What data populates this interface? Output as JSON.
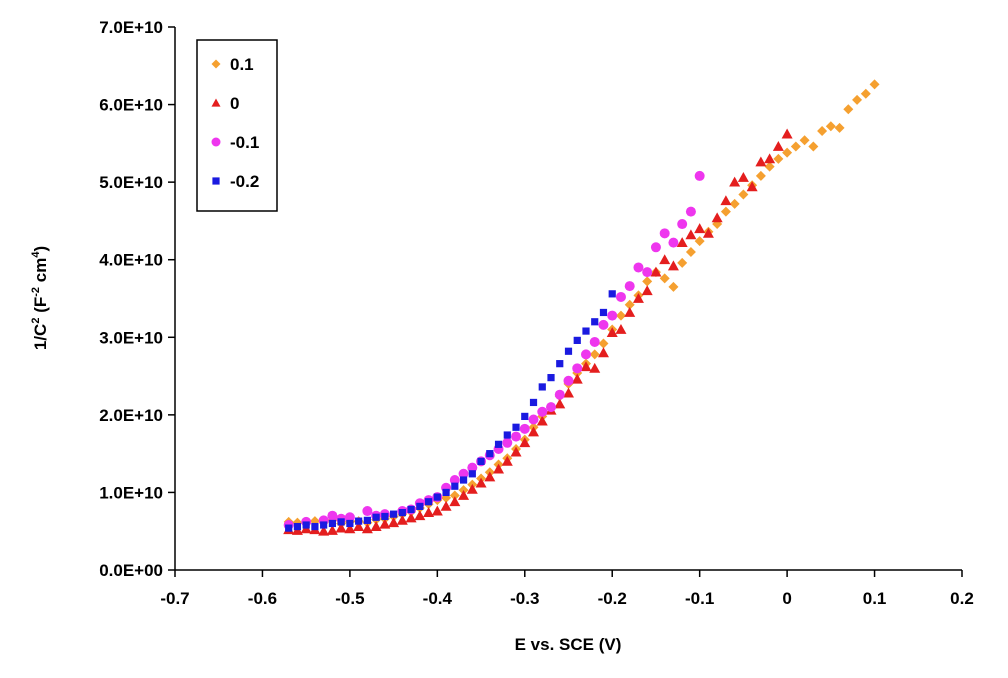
{
  "chart_data": {
    "type": "scatter",
    "title": "",
    "xlabel": "E vs. SCE (V)",
    "ylabel": {
      "base": "1/C",
      "sup1": "2",
      "mid": " (F",
      "sup2": "-2",
      "mid2": " cm",
      "sup3": "4",
      "end": ")"
    },
    "xlim": [
      -0.7,
      0.2
    ],
    "ylim": [
      0,
      70000000000
    ],
    "x_ticks": [
      -0.7,
      -0.6,
      -0.5,
      -0.4,
      -0.3,
      -0.2,
      -0.1,
      0,
      0.1,
      0.2
    ],
    "x_tick_labels": [
      "-0.7",
      "-0.6",
      "-0.5",
      "-0.4",
      "-0.3",
      "-0.2",
      "-0.1",
      "0",
      "0.1",
      "0.2"
    ],
    "y_ticks": [
      0,
      10000000000,
      20000000000,
      30000000000,
      40000000000,
      50000000000,
      60000000000,
      70000000000
    ],
    "y_tick_labels": [
      "0.0E+00",
      "1.0E+10",
      "2.0E+10",
      "3.0E+10",
      "4.0E+10",
      "5.0E+10",
      "6.0E+10",
      "7.0E+10"
    ],
    "grid": false,
    "legend_position": "top-left",
    "series": [
      {
        "name": "0.1",
        "color": "#f5a030",
        "marker": "diamond",
        "x": [
          -0.57,
          -0.56,
          -0.55,
          -0.54,
          -0.53,
          -0.52,
          -0.51,
          -0.5,
          -0.49,
          -0.48,
          -0.47,
          -0.46,
          -0.45,
          -0.44,
          -0.43,
          -0.42,
          -0.41,
          -0.4,
          -0.39,
          -0.38,
          -0.37,
          -0.36,
          -0.35,
          -0.34,
          -0.33,
          -0.32,
          -0.31,
          -0.3,
          -0.29,
          -0.28,
          -0.27,
          -0.26,
          -0.25,
          -0.24,
          -0.23,
          -0.22,
          -0.21,
          -0.2,
          -0.19,
          -0.18,
          -0.17,
          -0.16,
          -0.15,
          -0.14,
          -0.13,
          -0.12,
          -0.11,
          -0.1,
          -0.09,
          -0.08,
          -0.07,
          -0.06,
          -0.05,
          -0.04,
          -0.03,
          -0.02,
          -0.01,
          0,
          0.01,
          0.02,
          0.03,
          0.04,
          0.05,
          0.06,
          0.07,
          0.08,
          0.09,
          0.1
        ],
        "y": [
          6200000000.0,
          6100000000.0,
          6000000000.0,
          6300000000.0,
          6100000000.0,
          6400000000.0,
          6000000000.0,
          6200000000.0,
          6300000000.0,
          6100000000.0,
          6500000000.0,
          6600000000.0,
          6900000000.0,
          7200000000.0,
          7500000000.0,
          8000000000.0,
          8500000000.0,
          9000000000.0,
          9300000000.0,
          9600000000.0,
          10300000000.0,
          11000000000.0,
          11800000000.0,
          12600000000.0,
          13600000000.0,
          14400000000.0,
          15600000000.0,
          16800000000.0,
          18400000000.0,
          19800000000.0,
          21000000000.0,
          22400000000.0,
          24000000000.0,
          25400000000.0,
          26600000000.0,
          27800000000.0,
          29200000000.0,
          31000000000.0,
          32800000000.0,
          34200000000.0,
          35400000000.0,
          37200000000.0,
          38400000000.0,
          37600000000.0,
          36500000000.0,
          39600000000.0,
          41000000000.0,
          42400000000.0,
          43600000000.0,
          44600000000.0,
          46200000000.0,
          47200000000.0,
          48400000000.0,
          49600000000.0,
          50800000000.0,
          52000000000.0,
          53000000000.0,
          53800000000.0,
          54600000000.0,
          55400000000.0,
          54600000000.0,
          56600000000.0,
          57200000000.0,
          57000000000.0,
          59400000000.0,
          60600000000.0,
          61400000000.0,
          62600000000.0
        ]
      },
      {
        "name": "0",
        "color": "#e41e1e",
        "marker": "triangle",
        "x": [
          -0.57,
          -0.56,
          -0.55,
          -0.54,
          -0.53,
          -0.52,
          -0.51,
          -0.5,
          -0.49,
          -0.48,
          -0.47,
          -0.46,
          -0.45,
          -0.44,
          -0.43,
          -0.42,
          -0.41,
          -0.4,
          -0.39,
          -0.38,
          -0.37,
          -0.36,
          -0.35,
          -0.34,
          -0.33,
          -0.32,
          -0.31,
          -0.3,
          -0.29,
          -0.28,
          -0.27,
          -0.26,
          -0.25,
          -0.24,
          -0.23,
          -0.22,
          -0.21,
          -0.2,
          -0.19,
          -0.18,
          -0.17,
          -0.16,
          -0.15,
          -0.14,
          -0.13,
          -0.12,
          -0.11,
          -0.1,
          -0.09,
          -0.08,
          -0.07,
          -0.06,
          -0.05,
          -0.04,
          -0.03,
          -0.02,
          -0.01,
          0
        ],
        "y": [
          5200000000.0,
          5100000000.0,
          5300000000.0,
          5200000000.0,
          5000000000.0,
          5100000000.0,
          5400000000.0,
          5300000000.0,
          5600000000.0,
          5300000000.0,
          5600000000.0,
          5900000000.0,
          6100000000.0,
          6400000000.0,
          6700000000.0,
          7000000000.0,
          7400000000.0,
          7600000000.0,
          8200000000.0,
          8800000000.0,
          9600000000.0,
          10400000000.0,
          11200000000.0,
          12000000000.0,
          13000000000.0,
          14000000000.0,
          15200000000.0,
          16400000000.0,
          17800000000.0,
          19200000000.0,
          20600000000.0,
          21400000000.0,
          22800000000.0,
          24600000000.0,
          26200000000.0,
          26000000000.0,
          28000000000.0,
          30600000000.0,
          31000000000.0,
          33200000000.0,
          35000000000.0,
          36000000000.0,
          38400000000.0,
          40000000000.0,
          39200000000.0,
          42200000000.0,
          43200000000.0,
          44000000000.0,
          43400000000.0,
          45400000000.0,
          47600000000.0,
          50000000000.0,
          50600000000.0,
          49400000000.0,
          52600000000.0,
          53000000000.0,
          54600000000.0,
          56200000000.0
        ]
      },
      {
        "name": "-0.1",
        "color": "#ee36ee",
        "marker": "circle",
        "x": [
          -0.57,
          -0.55,
          -0.53,
          -0.52,
          -0.51,
          -0.5,
          -0.48,
          -0.47,
          -0.46,
          -0.44,
          -0.43,
          -0.42,
          -0.41,
          -0.4,
          -0.39,
          -0.38,
          -0.37,
          -0.36,
          -0.35,
          -0.34,
          -0.33,
          -0.32,
          -0.31,
          -0.3,
          -0.29,
          -0.28,
          -0.27,
          -0.26,
          -0.25,
          -0.24,
          -0.23,
          -0.22,
          -0.21,
          -0.2,
          -0.19,
          -0.18,
          -0.17,
          -0.16,
          -0.15,
          -0.14,
          -0.13,
          -0.12,
          -0.11,
          -0.1
        ],
        "y": [
          5800000000.0,
          6200000000.0,
          6400000000.0,
          7000000000.0,
          6600000000.0,
          6800000000.0,
          7600000000.0,
          7000000000.0,
          7200000000.0,
          7600000000.0,
          7800000000.0,
          8600000000.0,
          9000000000.0,
          9400000000.0,
          10600000000.0,
          11600000000.0,
          12400000000.0,
          13200000000.0,
          14000000000.0,
          14800000000.0,
          15600000000.0,
          16400000000.0,
          17200000000.0,
          18200000000.0,
          19400000000.0,
          20400000000.0,
          21000000000.0,
          22600000000.0,
          24400000000.0,
          26000000000.0,
          27800000000.0,
          29400000000.0,
          31600000000.0,
          32800000000.0,
          35200000000.0,
          36600000000.0,
          39000000000.0,
          38400000000.0,
          41600000000.0,
          43400000000.0,
          42200000000.0,
          44600000000.0,
          46200000000.0,
          50800000000.0
        ]
      },
      {
        "name": "-0.2",
        "color": "#1a1ae0",
        "marker": "square",
        "x": [
          -0.57,
          -0.56,
          -0.55,
          -0.54,
          -0.53,
          -0.52,
          -0.51,
          -0.5,
          -0.49,
          -0.48,
          -0.47,
          -0.46,
          -0.45,
          -0.44,
          -0.43,
          -0.42,
          -0.41,
          -0.4,
          -0.39,
          -0.38,
          -0.37,
          -0.36,
          -0.35,
          -0.34,
          -0.33,
          -0.32,
          -0.31,
          -0.3,
          -0.29,
          -0.28,
          -0.27,
          -0.26,
          -0.25,
          -0.24,
          -0.23,
          -0.22,
          -0.21,
          -0.2
        ],
        "y": [
          5400000000.0,
          5600000000.0,
          5800000000.0,
          5600000000.0,
          5800000000.0,
          6000000000.0,
          6200000000.0,
          6000000000.0,
          6300000000.0,
          6400000000.0,
          6800000000.0,
          6900000000.0,
          7200000000.0,
          7400000000.0,
          7800000000.0,
          8200000000.0,
          8800000000.0,
          9400000000.0,
          10000000000.0,
          10800000000.0,
          11600000000.0,
          12400000000.0,
          14000000000.0,
          15000000000.0,
          16200000000.0,
          17400000000.0,
          18400000000.0,
          19800000000.0,
          21600000000.0,
          23600000000.0,
          24800000000.0,
          26600000000.0,
          28200000000.0,
          29600000000.0,
          30800000000.0,
          32000000000.0,
          33200000000.0,
          35600000000.0
        ]
      }
    ]
  }
}
